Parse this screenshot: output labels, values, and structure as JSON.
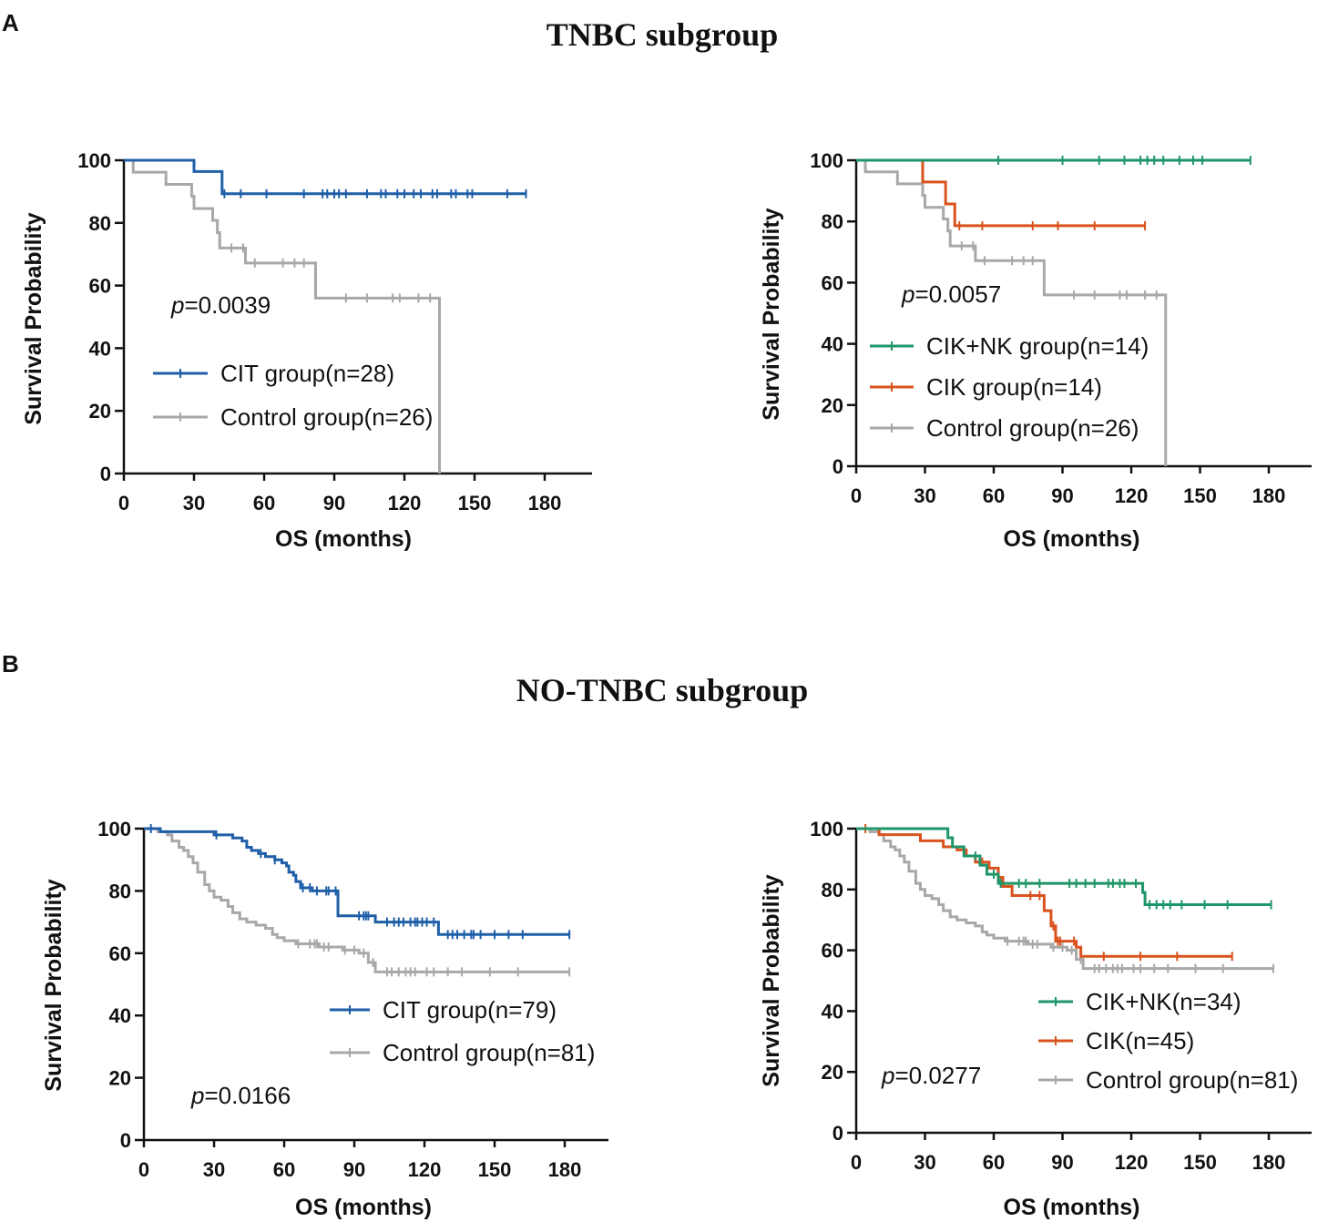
{
  "panels": {
    "a": {
      "letter": "A",
      "title": "TNBC subgroup"
    },
    "b": {
      "letter": "B",
      "title": "NO-TNBC subgroup"
    }
  },
  "colors": {
    "blue": "#1f5fa8",
    "gray": "#a8a8a8",
    "green": "#1e9668",
    "orange": "#d9531e"
  },
  "chart_data": [
    {
      "type": "line",
      "subtype": "kaplan-meier",
      "panel": "A",
      "xlabel": "OS (months)",
      "ylabel": "Survival Probability",
      "xlim": [
        0,
        180
      ],
      "ylim": [
        0,
        100
      ],
      "xticks": [
        0,
        30,
        60,
        90,
        120,
        150,
        180
      ],
      "yticks": [
        0,
        20,
        40,
        60,
        80,
        100
      ],
      "pvalue_prefix": "p",
      "pvalue_text": "=0.0039",
      "legend_position": "lower-left",
      "series": [
        {
          "name": "CIT group(n=28)",
          "color": "#1f5fa8",
          "steps": [
            [
              0,
              100
            ],
            [
              30,
              96.4
            ],
            [
              42,
              89.3
            ],
            [
              172,
              89.3
            ]
          ],
          "censors": [
            43,
            50,
            61,
            77,
            85,
            87,
            90,
            92,
            95,
            104,
            110,
            112,
            117,
            120,
            124,
            127,
            132,
            134,
            140,
            142,
            147,
            149,
            164,
            172
          ]
        },
        {
          "name": "Control group(n=26)",
          "color": "#a8a8a8",
          "steps": [
            [
              0,
              100
            ],
            [
              4,
              96.2
            ],
            [
              18,
              92.3
            ],
            [
              29,
              88.5
            ],
            [
              30,
              84.6
            ],
            [
              38,
              80.8
            ],
            [
              40,
              76.9
            ],
            [
              41,
              72
            ],
            [
              52,
              67.2
            ],
            [
              82,
              56
            ],
            [
              135,
              0
            ]
          ],
          "censors": [
            46,
            51,
            56,
            68,
            73,
            77,
            95,
            104,
            115,
            118,
            126,
            131
          ]
        }
      ]
    },
    {
      "type": "line",
      "subtype": "kaplan-meier",
      "panel": "A",
      "xlabel": "OS (months)",
      "ylabel": "Survival Probability",
      "xlim": [
        0,
        180
      ],
      "ylim": [
        0,
        100
      ],
      "xticks": [
        0,
        30,
        60,
        90,
        120,
        150,
        180
      ],
      "yticks": [
        0,
        20,
        40,
        60,
        80,
        100
      ],
      "pvalue_prefix": "p",
      "pvalue_text": "=0.0057",
      "legend_position": "lower-left",
      "series": [
        {
          "name": "CIK+NK group(n=14)",
          "color": "#1e9668",
          "steps": [
            [
              0,
              100
            ],
            [
              172,
              100
            ]
          ],
          "censors": [
            62,
            90,
            106,
            117,
            124,
            127,
            130,
            134,
            141,
            147,
            151,
            172
          ]
        },
        {
          "name": "CIK group(n=14)",
          "color": "#d9531e",
          "steps": [
            [
              0,
              100
            ],
            [
              29,
              92.9
            ],
            [
              39,
              85.7
            ],
            [
              43,
              78.6
            ],
            [
              126,
              78.6
            ]
          ],
          "censors": [
            45,
            55,
            77,
            88,
            104,
            126
          ]
        },
        {
          "name": "Control group(n=26)",
          "color": "#a8a8a8",
          "steps": [
            [
              0,
              100
            ],
            [
              4,
              96.2
            ],
            [
              18,
              92.3
            ],
            [
              29,
              88.5
            ],
            [
              30,
              84.6
            ],
            [
              38,
              80.8
            ],
            [
              40,
              76.9
            ],
            [
              41,
              72
            ],
            [
              52,
              67.2
            ],
            [
              82,
              56
            ],
            [
              135,
              0
            ]
          ],
          "censors": [
            46,
            51,
            56,
            68,
            73,
            77,
            95,
            104,
            115,
            118,
            126,
            131
          ]
        }
      ]
    },
    {
      "type": "line",
      "subtype": "kaplan-meier",
      "panel": "B",
      "xlabel": "OS (months)",
      "ylabel": "Survival Probability",
      "xlim": [
        0,
        180
      ],
      "ylim": [
        0,
        100
      ],
      "xticks": [
        0,
        30,
        60,
        90,
        120,
        150,
        180
      ],
      "yticks": [
        0,
        20,
        40,
        60,
        80,
        100
      ],
      "pvalue_prefix": "p",
      "pvalue_text": "=0.0166",
      "legend_position": "lower-right",
      "series": [
        {
          "name": "CIT group(n=79)",
          "color": "#1f5fa8",
          "steps": [
            [
              0,
              100
            ],
            [
              7,
              99
            ],
            [
              30,
              98
            ],
            [
              38,
              97
            ],
            [
              42,
              96
            ],
            [
              44,
              94
            ],
            [
              46,
              93
            ],
            [
              49,
              92
            ],
            [
              52,
              91
            ],
            [
              56,
              90
            ],
            [
              59,
              89
            ],
            [
              61,
              88
            ],
            [
              62,
              86
            ],
            [
              64,
              85
            ],
            [
              65,
              83
            ],
            [
              67,
              81
            ],
            [
              72,
              80
            ],
            [
              83,
              76
            ],
            [
              83,
              72
            ],
            [
              99,
              70
            ],
            [
              126,
              66
            ],
            [
              182,
              66
            ]
          ],
          "censors": [
            3,
            31,
            50,
            56,
            68,
            71,
            74,
            78,
            79,
            82,
            92,
            94,
            95,
            96,
            104,
            107,
            109,
            111,
            114,
            116,
            117,
            119,
            121,
            124,
            130,
            132,
            134,
            137,
            140,
            141,
            144,
            150,
            156,
            162,
            182
          ]
        },
        {
          "name": "Control group(n=81)",
          "color": "#a8a8a8",
          "steps": [
            [
              0,
              100
            ],
            [
              6,
              99
            ],
            [
              10,
              98
            ],
            [
              12,
              96
            ],
            [
              15,
              94
            ],
            [
              17,
              93
            ],
            [
              19,
              91
            ],
            [
              21,
              89
            ],
            [
              23,
              86
            ],
            [
              26,
              82
            ],
            [
              28,
              80
            ],
            [
              30,
              78
            ],
            [
              33,
              77
            ],
            [
              36,
              75
            ],
            [
              38,
              73
            ],
            [
              41,
              71
            ],
            [
              44,
              70
            ],
            [
              48,
              69
            ],
            [
              52,
              68
            ],
            [
              55,
              66
            ],
            [
              57,
              65
            ],
            [
              60,
              64
            ],
            [
              65,
              63
            ],
            [
              75,
              62
            ],
            [
              85,
              61
            ],
            [
              92,
              60
            ],
            [
              96,
              57
            ],
            [
              99,
              54
            ],
            [
              182,
              54
            ]
          ],
          "censors": [
            66,
            71,
            73,
            74,
            77,
            79,
            86,
            90,
            94,
            98,
            104,
            106,
            109,
            112,
            114,
            116,
            121,
            124,
            130,
            136,
            148,
            160,
            182
          ]
        }
      ]
    },
    {
      "type": "line",
      "subtype": "kaplan-meier",
      "panel": "B",
      "xlabel": "OS (months)",
      "ylabel": "Survival Probability",
      "xlim": [
        0,
        180
      ],
      "ylim": [
        0,
        100
      ],
      "xticks": [
        0,
        30,
        60,
        90,
        120,
        150,
        180
      ],
      "yticks": [
        0,
        20,
        40,
        60,
        80,
        100
      ],
      "pvalue_prefix": "p",
      "pvalue_text": "=0.0277",
      "legend_position": "lower-right",
      "series": [
        {
          "name": "CIK+NK(n=34)",
          "color": "#1e9668",
          "steps": [
            [
              0,
              100
            ],
            [
              40,
              97
            ],
            [
              42,
              94
            ],
            [
              47,
              91
            ],
            [
              54,
              88
            ],
            [
              57,
              85
            ],
            [
              62,
              82
            ],
            [
              125,
              79
            ],
            [
              126,
              75
            ],
            [
              181,
              75
            ]
          ],
          "censors": [
            52,
            60,
            63,
            71,
            74,
            80,
            93,
            96,
            100,
            104,
            110,
            112,
            115,
            117,
            122,
            128,
            131,
            134,
            137,
            142,
            152,
            162,
            181
          ]
        },
        {
          "name": "CIK(n=45)",
          "color": "#d9531e",
          "steps": [
            [
              0,
              100
            ],
            [
              10,
              98
            ],
            [
              28,
              96
            ],
            [
              38,
              94
            ],
            [
              44,
              93
            ],
            [
              48,
              91
            ],
            [
              52,
              89
            ],
            [
              58,
              87
            ],
            [
              62,
              84
            ],
            [
              64,
              81
            ],
            [
              68,
              78
            ],
            [
              82,
              73
            ],
            [
              85,
              68
            ],
            [
              87,
              63
            ],
            [
              96,
              61
            ],
            [
              98,
              58
            ],
            [
              164,
              58
            ]
          ],
          "censors": [
            4,
            55,
            62,
            76,
            80,
            86,
            88,
            89,
            95,
            108,
            124,
            140,
            164
          ]
        },
        {
          "name": "Control group(n=81)",
          "color": "#a8a8a8",
          "steps": [
            [
              0,
              100
            ],
            [
              6,
              99
            ],
            [
              10,
              98
            ],
            [
              12,
              96
            ],
            [
              15,
              94
            ],
            [
              17,
              93
            ],
            [
              19,
              91
            ],
            [
              21,
              89
            ],
            [
              23,
              86
            ],
            [
              26,
              82
            ],
            [
              28,
              80
            ],
            [
              30,
              78
            ],
            [
              33,
              77
            ],
            [
              36,
              75
            ],
            [
              38,
              73
            ],
            [
              41,
              71
            ],
            [
              44,
              70
            ],
            [
              48,
              69
            ],
            [
              52,
              68
            ],
            [
              55,
              66
            ],
            [
              57,
              65
            ],
            [
              60,
              64
            ],
            [
              65,
              63
            ],
            [
              75,
              62
            ],
            [
              85,
              61
            ],
            [
              92,
              60
            ],
            [
              96,
              57
            ],
            [
              99,
              54
            ],
            [
              182,
              54
            ]
          ],
          "censors": [
            66,
            71,
            73,
            74,
            77,
            79,
            86,
            90,
            94,
            98,
            104,
            106,
            109,
            112,
            114,
            116,
            121,
            124,
            130,
            136,
            148,
            160,
            182
          ]
        }
      ]
    }
  ]
}
